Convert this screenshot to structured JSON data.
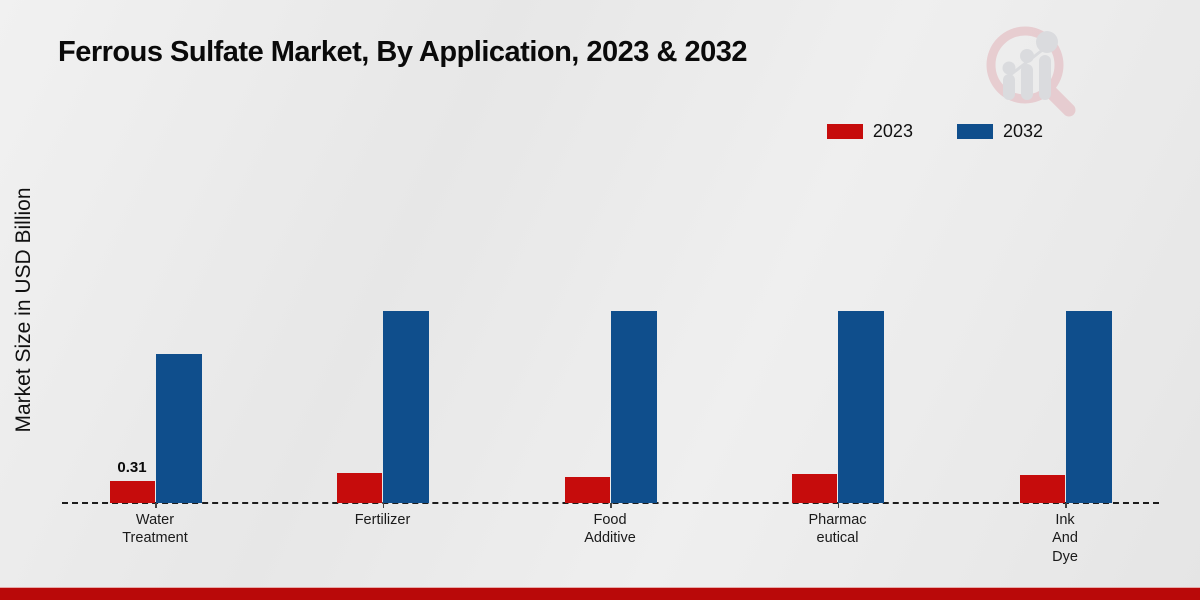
{
  "title": "Ferrous Sulfate Market, By Application, 2023 & 2032",
  "y_axis_label": "Market Size in USD Billion",
  "legend": {
    "position": "top-right",
    "items": [
      {
        "label": "2023",
        "color": "#c60c0c"
      },
      {
        "label": "2032",
        "color": "#0f4e8c"
      }
    ]
  },
  "colors": {
    "series_2023": "#c60c0c",
    "series_2032": "#0f4e8c",
    "footer_accent": "#b90909",
    "baseline": "#1c1c1c",
    "background": "#ebebeb"
  },
  "watermark_icon": "market-research-magnifier-bar-chart-logo",
  "chart_data": {
    "type": "bar",
    "title": "Ferrous Sulfate Market, By Application, 2023 & 2032",
    "xlabel": "",
    "ylabel": "Market Size in USD Billion",
    "ylim": [
      0,
      3.2
    ],
    "grid": false,
    "baseline_style": "dashed",
    "legend_position": "top-right",
    "categories": [
      "Water Treatment",
      "Fertilizer",
      "Food Additive",
      "Pharmaceutical",
      "Ink And Dye"
    ],
    "category_label_lines": [
      [
        "Water",
        "Treatment"
      ],
      [
        "Fertilizer"
      ],
      [
        "Food",
        "Additive"
      ],
      [
        "Pharmac",
        "eutical"
      ],
      [
        "Ink",
        "And",
        "Dye"
      ]
    ],
    "series": [
      {
        "name": "2023",
        "color": "#c60c0c",
        "values": [
          0.31,
          0.42,
          0.37,
          0.41,
          0.39
        ]
      },
      {
        "name": "2032",
        "color": "#0f4e8c",
        "values": [
          2.1,
          2.7,
          2.7,
          2.7,
          2.7
        ]
      }
    ],
    "annotations": [
      {
        "series_index": 0,
        "category_index": 0,
        "text": "0.31"
      }
    ]
  }
}
